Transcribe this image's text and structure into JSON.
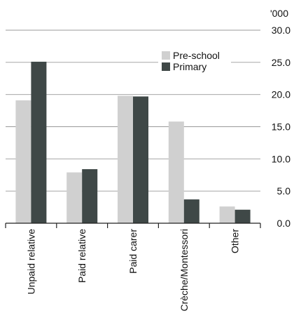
{
  "chart_data": {
    "type": "bar",
    "title": "",
    "xlabel": "",
    "ylabel": "",
    "unit_label": "'000",
    "categories": [
      "Unpaid relative",
      "Paid relative",
      "Paid carer",
      "Crèche/Montessori",
      "Other"
    ],
    "series": [
      {
        "name": "Pre-school",
        "values": [
          19.1,
          7.9,
          19.8,
          15.8,
          2.6
        ],
        "color": "#d0d0d0"
      },
      {
        "name": "Primary",
        "values": [
          25.1,
          8.4,
          19.7,
          3.7,
          2.1
        ],
        "color": "#3f4847"
      }
    ],
    "y_ticks": [
      "0.0",
      "5.0",
      "10.0",
      "15.0",
      "20.0",
      "25.0",
      "30.0"
    ],
    "ylim": [
      0,
      30
    ],
    "grid": true,
    "legend_position": "top-right",
    "y_axis_position": "right"
  }
}
